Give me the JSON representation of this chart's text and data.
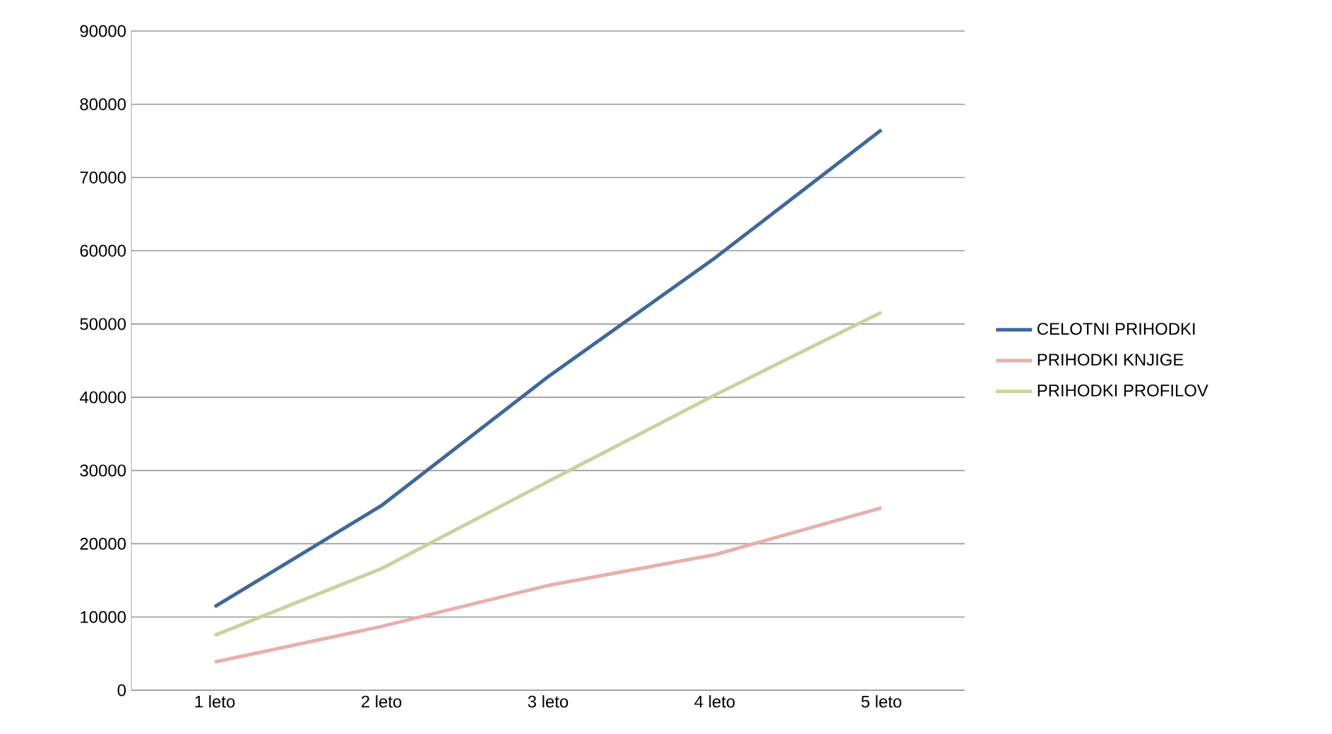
{
  "chart_data": {
    "type": "line",
    "categories": [
      "1 leto",
      "2 leto",
      "3 leto",
      "4 leto",
      "5 leto"
    ],
    "series": [
      {
        "name": "CELOTNI PRIHODKI",
        "color": "#3f679b",
        "values": [
          11400,
          25200,
          42800,
          59000,
          76500
        ]
      },
      {
        "name": "PRIHODKI KNJIGE",
        "color": "#e6b0ae",
        "values": [
          3850,
          8700,
          14300,
          18500,
          24900
        ]
      },
      {
        "name": "PRIHODKI PROFILOV",
        "color": "#c3d69b",
        "values": [
          7500,
          16600,
          28500,
          40300,
          51600
        ]
      }
    ],
    "ylim": [
      0,
      90000
    ],
    "yticks": [
      0,
      10000,
      20000,
      30000,
      40000,
      50000,
      60000,
      70000,
      80000,
      90000
    ],
    "grid": "y",
    "legend": "right",
    "marker": "none",
    "line_style": "solid"
  }
}
